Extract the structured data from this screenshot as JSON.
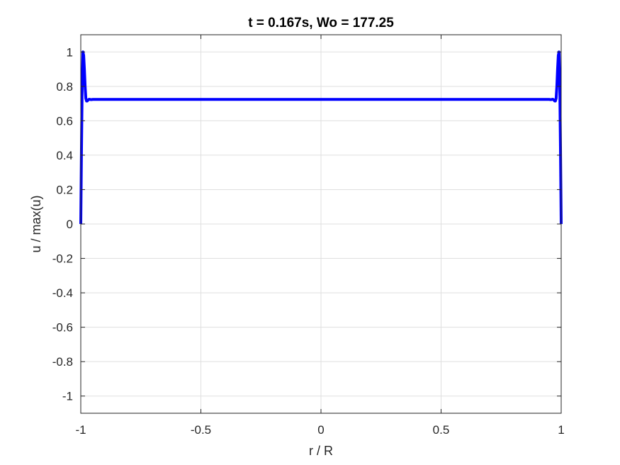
{
  "chart_data": {
    "type": "line",
    "title": "t = 0.167s, Wo = 177.25",
    "xlabel": "r / R",
    "ylabel": "u / max(u)",
    "xlim": [
      -1,
      1
    ],
    "ylim": [
      -1.1,
      1.1
    ],
    "x_ticks": [
      -1,
      -0.5,
      0,
      0.5,
      1
    ],
    "x_tick_labels": [
      "-1",
      "-0.5",
      "0",
      "0.5",
      "1"
    ],
    "y_ticks": [
      -1,
      -0.8,
      -0.6,
      -0.4,
      -0.2,
      0,
      0.2,
      0.4,
      0.6,
      0.8,
      1
    ],
    "y_tick_labels": [
      "-1",
      "-0.8",
      "-0.6",
      "-0.4",
      "-0.2",
      "0",
      "0.2",
      "0.4",
      "0.6",
      "0.8",
      "1"
    ],
    "grid": true,
    "box": true,
    "series": [
      {
        "color": "#0000ff",
        "x": [
          -1,
          -0.997,
          -0.994,
          -0.991,
          -0.988,
          -0.985,
          -0.982,
          -0.979,
          -0.976,
          -0.973,
          -0.97,
          -0.967,
          -0.964,
          -0.961,
          -0.958,
          -0.955,
          -0.95,
          -0.94,
          -0.5,
          0,
          0.5,
          0.94,
          0.95,
          0.955,
          0.958,
          0.961,
          0.964,
          0.967,
          0.97,
          0.973,
          0.976,
          0.979,
          0.982,
          0.985,
          0.988,
          0.991,
          0.994,
          0.997,
          1
        ],
        "y": [
          0,
          0.45,
          0.82,
          1.0,
          0.98,
          0.9,
          0.8,
          0.73,
          0.715,
          0.715,
          0.72,
          0.724,
          0.725,
          0.724,
          0.723,
          0.723,
          0.724,
          0.724,
          0.724,
          0.724,
          0.724,
          0.724,
          0.724,
          0.723,
          0.723,
          0.724,
          0.725,
          0.724,
          0.72,
          0.715,
          0.715,
          0.73,
          0.8,
          0.9,
          0.98,
          1.0,
          0.82,
          0.45,
          0
        ]
      }
    ]
  }
}
